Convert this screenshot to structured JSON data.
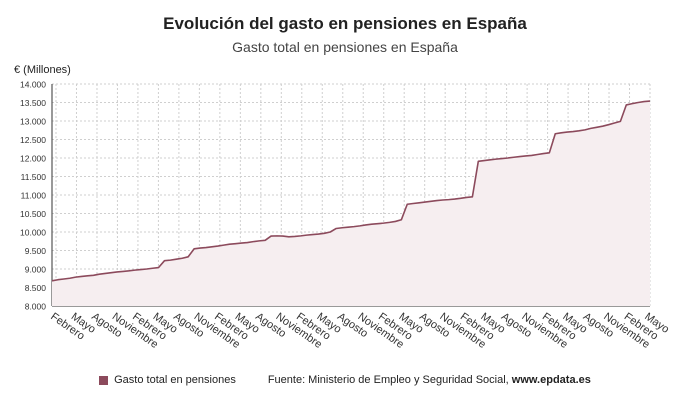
{
  "title": "Evolución del gasto en pensiones en España",
  "subtitle": "Gasto total en pensiones en España",
  "footer": {
    "legend_label": "Gasto total en pensiones",
    "source_prefix": "Fuente: Ministerio de Empleo y Seguridad Social, ",
    "source_site": "www.epdata.es"
  },
  "colors": {
    "series": "#8c4a5c",
    "fill": "#f6eef0",
    "grid": "#cfcfcf"
  },
  "chart_data": {
    "type": "area",
    "title": "Evolución del gasto en pensiones en España",
    "subtitle": "Gasto total en pensiones en España",
    "ylabel": "€ (Millones)",
    "xlabel": "",
    "ylim": [
      8000,
      14000
    ],
    "yticks": [
      8000,
      8500,
      9000,
      9500,
      10000,
      10500,
      11000,
      11500,
      12000,
      12500,
      13000,
      13500,
      14000
    ],
    "ytick_labels": [
      "8.000",
      "8.500",
      "9.000",
      "9.500",
      "10.000",
      "10.500",
      "11.000",
      "11.500",
      "12.000",
      "12.500",
      "13.000",
      "13.500",
      "14.000"
    ],
    "xtick_labels": [
      "Febrero",
      "Mayo",
      "Agosto",
      "Noviembre",
      "Febrero",
      "Mayo",
      "Agosto",
      "Noviembre",
      "Febrero",
      "Mayo",
      "Agosto",
      "Noviembre",
      "Febrero",
      "Mayo",
      "Agosto",
      "Noviembre",
      "Febrero",
      "Mayo",
      "Agosto",
      "Noviembre",
      "Febrero",
      "Mayo",
      "Agosto",
      "Noviembre",
      "Febrero",
      "Mayo",
      "Agosto",
      "Noviembre",
      "Febrero",
      "Mayo"
    ],
    "grid": true,
    "legend": "bottom",
    "series": [
      {
        "name": "Gasto total en pensiones",
        "values": [
          8680,
          8710,
          8730,
          8750,
          8780,
          8800,
          8815,
          8830,
          8860,
          8880,
          8900,
          8920,
          8935,
          8950,
          8970,
          8985,
          9000,
          9020,
          9040,
          9225,
          9240,
          9265,
          9290,
          9330,
          9545,
          9565,
          9580,
          9600,
          9620,
          9645,
          9670,
          9685,
          9700,
          9715,
          9740,
          9760,
          9775,
          9890,
          9895,
          9890,
          9870,
          9880,
          9895,
          9915,
          9930,
          9945,
          9965,
          10000,
          10095,
          10115,
          10130,
          10145,
          10165,
          10190,
          10210,
          10225,
          10240,
          10260,
          10285,
          10330,
          10750,
          10770,
          10790,
          10810,
          10830,
          10850,
          10865,
          10875,
          10890,
          10910,
          10935,
          10950,
          11910,
          11930,
          11950,
          11970,
          11985,
          12000,
          12020,
          12040,
          12055,
          12070,
          12095,
          12120,
          12140,
          12655,
          12680,
          12700,
          12715,
          12735,
          12760,
          12800,
          12830,
          12860,
          12900,
          12945,
          12990,
          13435,
          13470,
          13500,
          13525,
          13540
        ]
      }
    ]
  }
}
